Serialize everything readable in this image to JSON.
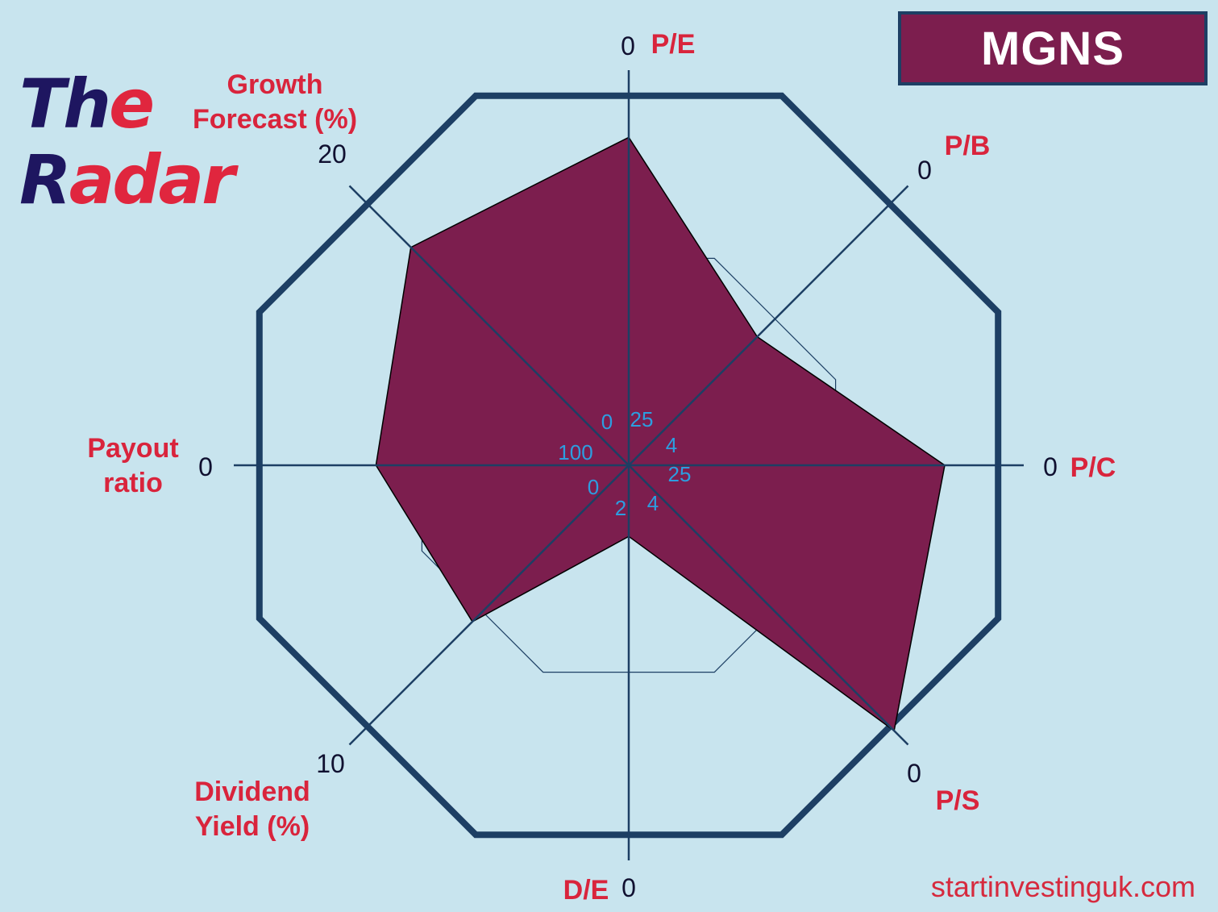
{
  "brand": {
    "title_line1_prefix": "Th",
    "title_line1_suffix": "e",
    "title_line2_prefix": "R",
    "title_line2_suffix": "adar",
    "dark_color": "#1e1660",
    "accent_color": "#e0263e"
  },
  "ticker": "MGNS",
  "website": "startinvestinguk.com",
  "chart_data": {
    "type": "radar",
    "series_color": "#7c1e4e",
    "frame_color": "#1d3f64",
    "axes": [
      {
        "name": "pe",
        "label_lines": [
          "P/E"
        ],
        "outer_tick": "0",
        "inner_tick": "25",
        "value_fraction": 0.83
      },
      {
        "name": "pb",
        "label_lines": [
          "P/B"
        ],
        "outer_tick": "0",
        "inner_tick": "4",
        "value_fraction": 0.46
      },
      {
        "name": "pc",
        "label_lines": [
          "P/C"
        ],
        "outer_tick": "0",
        "inner_tick": "25",
        "value_fraction": 0.8
      },
      {
        "name": "ps",
        "label_lines": [
          "P/S"
        ],
        "outer_tick": "0",
        "inner_tick": "4",
        "value_fraction": 0.95
      },
      {
        "name": "de",
        "label_lines": [
          "D/E"
        ],
        "outer_tick": "0",
        "inner_tick": "2",
        "value_fraction": 0.18
      },
      {
        "name": "dividend-yield",
        "label_lines": [
          "Dividend",
          "Yield (%)"
        ],
        "outer_tick": "10",
        "inner_tick": "0",
        "value_fraction": 0.56
      },
      {
        "name": "payout-ratio",
        "label_lines": [
          "Payout",
          "ratio"
        ],
        "outer_tick": "0",
        "inner_tick": "100",
        "value_fraction": 0.64
      },
      {
        "name": "growth-forecast",
        "label_lines": [
          "Growth",
          "Forecast (%)"
        ],
        "outer_tick": "20",
        "inner_tick": "0",
        "value_fraction": 0.78
      }
    ],
    "reference_ring_fraction": 0.56
  }
}
